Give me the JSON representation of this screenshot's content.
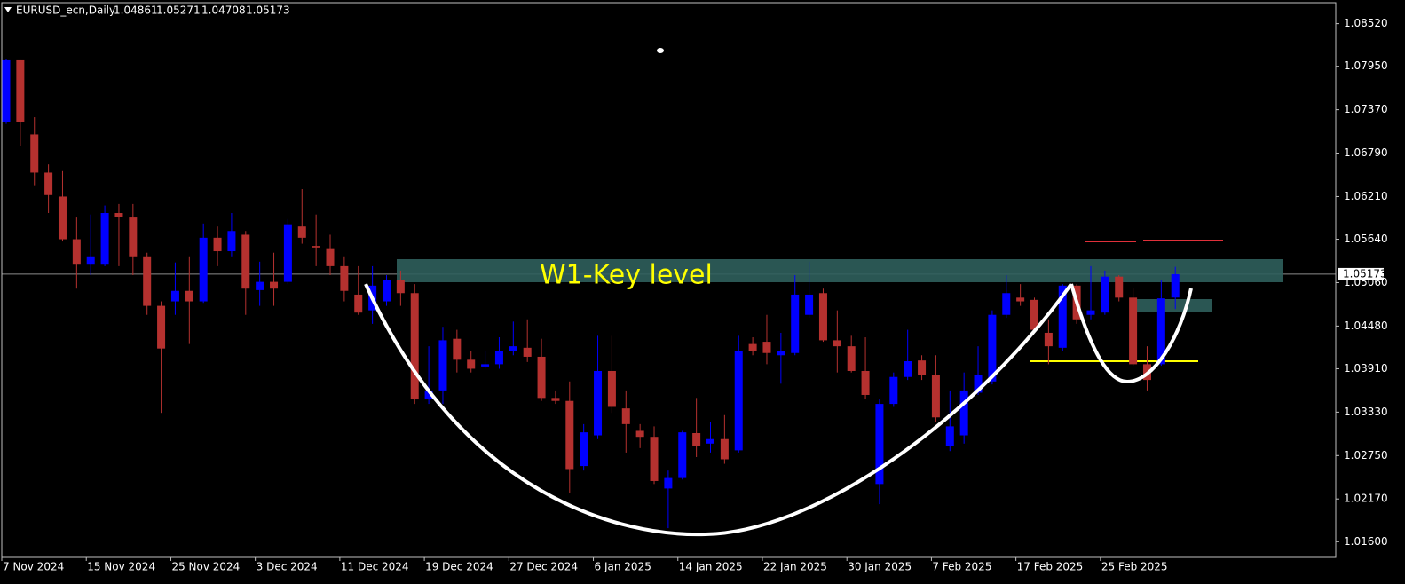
{
  "chart_data": {
    "type": "candlestick",
    "title": "EURUSD_ecn,Daily",
    "annotation": "W1-Key level",
    "bull_color": "#0000ff",
    "bear_color": "#b5312f",
    "ylim": [
      1.0139,
      1.088
    ],
    "yticks": [
      {
        "value": 1.0852,
        "label": "1.08520"
      },
      {
        "value": 1.0795,
        "label": "1.07950"
      },
      {
        "value": 1.0737,
        "label": "1.07370"
      },
      {
        "value": 1.0679,
        "label": "1.06790"
      },
      {
        "value": 1.0621,
        "label": "1.06210"
      },
      {
        "value": 1.0564,
        "label": "1.05640"
      },
      {
        "value": 1.0506,
        "label": "1.05060"
      },
      {
        "value": 1.0448,
        "label": "1.04480"
      },
      {
        "value": 1.0391,
        "label": "1.03910"
      },
      {
        "value": 1.0333,
        "label": "1.03330"
      },
      {
        "value": 1.0275,
        "label": "1.02750"
      },
      {
        "value": 1.0217,
        "label": "1.02170"
      },
      {
        "value": 1.016,
        "label": "1.01600"
      }
    ],
    "categories": [
      "7 Nov 2024",
      null,
      null,
      null,
      null,
      null,
      "15 Nov 2024",
      null,
      null,
      null,
      null,
      null,
      "25 Nov 2024",
      null,
      null,
      null,
      null,
      null,
      "3 Dec 2024",
      null,
      null,
      null,
      null,
      null,
      "11 Dec 2024",
      null,
      null,
      null,
      null,
      null,
      "19 Dec 2024",
      null,
      null,
      null,
      null,
      null,
      "27 Dec 2024",
      null,
      null,
      null,
      null,
      null,
      "6 Jan 2025",
      null,
      null,
      null,
      null,
      null,
      "14 Jan 2025",
      null,
      null,
      null,
      null,
      null,
      "22 Jan 2025",
      null,
      null,
      null,
      null,
      null,
      "30 Jan 2025",
      null,
      null,
      null,
      null,
      null,
      "7 Feb 2025",
      null,
      null,
      null,
      null,
      null,
      "17 Feb 2025",
      null,
      null,
      null,
      null,
      null,
      "25 Feb 2025",
      null,
      null,
      null,
      null,
      null
    ],
    "open": [
      1.072,
      1.0803,
      1.0704,
      1.0653,
      1.0621,
      1.0564,
      1.053,
      1.053,
      1.0599,
      1.0593,
      1.054,
      1.0475,
      1.0481,
      1.0495,
      1.0481,
      1.0566,
      1.0548,
      1.057,
      1.0496,
      1.0507,
      1.0507,
      1.0581,
      1.0555,
      1.0552,
      1.0528,
      1.049,
      1.0469,
      1.0481,
      1.051,
      1.0492,
      1.035,
      1.0362,
      1.0431,
      1.0403,
      1.0394,
      1.0397,
      1.0415,
      1.0419,
      1.0407,
      1.0352,
      1.0348,
      1.0261,
      1.0302,
      1.0388,
      1.0338,
      1.0308,
      1.03,
      1.0231,
      1.0245,
      1.0305,
      1.0291,
      1.0297,
      1.0282,
      1.0424,
      1.0427,
      1.0409,
      1.0412,
      1.0463,
      1.0492,
      1.0429,
      1.0421,
      1.0388,
      1.0237,
      1.0344,
      1.038,
      1.0402,
      1.0383,
      1.0288,
      1.0302,
      1.0359,
      1.0374,
      1.0463,
      1.0486,
      1.0483,
      1.0439,
      1.0419,
      1.0502,
      1.0463,
      1.0466,
      1.0514,
      1.0486,
      1.0397,
      1.0397,
      1.04861
    ],
    "high": [
      1.0805,
      1.0803,
      1.0727,
      1.0664,
      1.0655,
      1.0593,
      1.0597,
      1.0609,
      1.0611,
      1.0611,
      1.0546,
      1.0481,
      1.0533,
      1.054,
      1.0585,
      1.0581,
      1.0599,
      1.0575,
      1.0534,
      1.0546,
      1.0591,
      1.0631,
      1.0597,
      1.057,
      1.054,
      1.0528,
      1.0528,
      1.0516,
      1.0522,
      1.0504,
      1.0421,
      1.0447,
      1.0443,
      1.0415,
      1.0415,
      1.0433,
      1.0454,
      1.0457,
      1.0431,
      1.0362,
      1.0374,
      1.0317,
      1.0435,
      1.0435,
      1.0362,
      1.0317,
      1.0314,
      1.0255,
      1.0308,
      1.0352,
      1.032,
      1.0329,
      1.0435,
      1.0433,
      1.0463,
      1.0439,
      1.0516,
      1.0534,
      1.0498,
      1.0469,
      1.0435,
      1.0433,
      1.035,
      1.0386,
      1.0443,
      1.0409,
      1.0409,
      1.0362,
      1.0386,
      1.0421,
      1.0469,
      1.0516,
      1.0504,
      1.0486,
      1.0457,
      1.0504,
      1.0504,
      1.0528,
      1.0522,
      1.0516,
      1.0498,
      1.0421,
      1.051,
      1.05271
    ],
    "low": [
      1.0718,
      1.0688,
      1.0635,
      1.0599,
      1.0561,
      1.0498,
      1.0516,
      1.0528,
      1.0528,
      1.0516,
      1.0463,
      1.0332,
      1.0463,
      1.0424,
      1.0479,
      1.0528,
      1.054,
      1.0463,
      1.0475,
      1.0475,
      1.0504,
      1.0558,
      1.0528,
      1.0516,
      1.0481,
      1.0463,
      1.0451,
      1.0475,
      1.0475,
      1.0344,
      1.0344,
      1.0344,
      1.0386,
      1.0386,
      1.0391,
      1.0391,
      1.0409,
      1.04,
      1.0348,
      1.0344,
      1.0225,
      1.0255,
      1.0297,
      1.0332,
      1.0279,
      1.0285,
      1.0237,
      1.0178,
      1.0243,
      1.0273,
      1.0279,
      1.0264,
      1.0279,
      1.0409,
      1.0397,
      1.0371,
      1.0409,
      1.0459,
      1.0427,
      1.0386,
      1.0386,
      1.035,
      1.021,
      1.034,
      1.0376,
      1.0376,
      1.032,
      1.0281,
      1.0291,
      1.0356,
      1.037,
      1.0459,
      1.0475,
      1.0439,
      1.0397,
      1.0415,
      1.0451,
      1.0457,
      1.0463,
      1.0481,
      1.0395,
      1.0362,
      1.0395,
      1.04708
    ],
    "close": [
      1.0803,
      1.072,
      1.0653,
      1.0623,
      1.0564,
      1.053,
      1.054,
      1.0599,
      1.0594,
      1.054,
      1.0475,
      1.0418,
      1.0495,
      1.0481,
      1.0566,
      1.0548,
      1.0575,
      1.0498,
      1.0507,
      1.0498,
      1.0584,
      1.0566,
      1.0553,
      1.0528,
      1.0495,
      1.0466,
      1.0502,
      1.051,
      1.0492,
      1.035,
      1.0362,
      1.0429,
      1.0403,
      1.0391,
      1.0397,
      1.0415,
      1.0421,
      1.0407,
      1.0352,
      1.0348,
      1.0257,
      1.0306,
      1.0388,
      1.034,
      1.0317,
      1.03,
      1.0241,
      1.0245,
      1.0306,
      1.0288,
      1.0297,
      1.027,
      1.0415,
      1.0415,
      1.0412,
      1.0415,
      1.049,
      1.049,
      1.0429,
      1.0421,
      1.0388,
      1.0356,
      1.0344,
      1.038,
      1.0401,
      1.0383,
      1.0326,
      1.0314,
      1.0362,
      1.0383,
      1.0463,
      1.0492,
      1.0481,
      1.0443,
      1.0421,
      1.0502,
      1.0457,
      1.0469,
      1.0514,
      1.0486,
      1.0397,
      1.0376,
      1.0485,
      1.05173
    ]
  }
}
